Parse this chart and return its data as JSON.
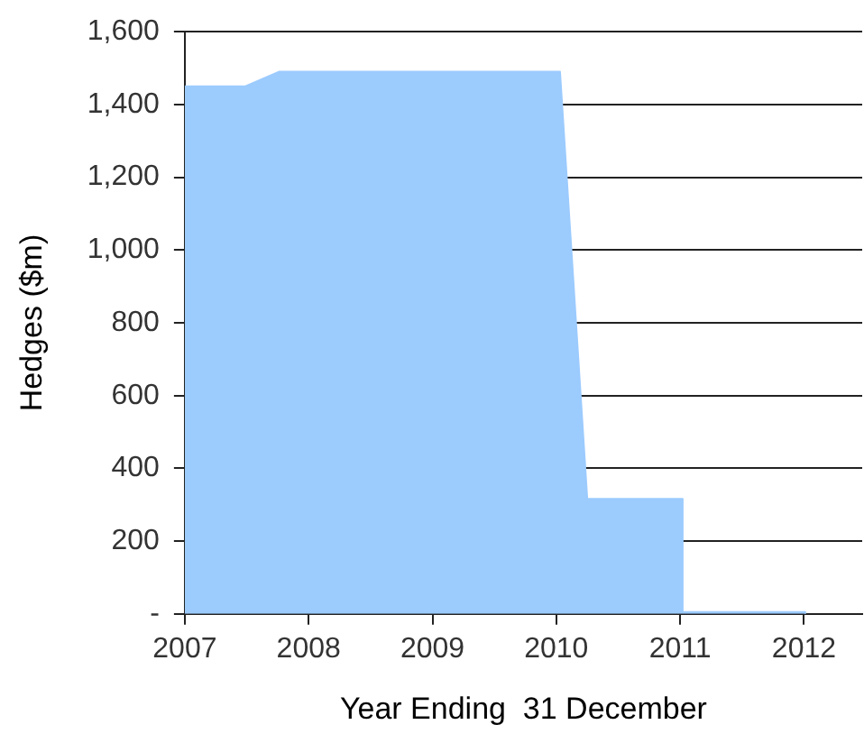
{
  "chart_data": {
    "type": "area",
    "xlabel": "Year Ending  31 December",
    "ylabel": "Hedges ($m)",
    "series": [
      {
        "color": "#9ccbfe",
        "x": [
          2007,
          2007.49,
          2007.76,
          2010.03,
          2010.25,
          2011.02,
          2011.02,
          2012.01,
          2012.01
        ],
        "values": [
          1450,
          1450,
          1490,
          1490,
          316,
          316,
          5,
          5,
          0
        ]
      }
    ],
    "xlim": [
      2007,
      2012.47
    ],
    "xticks": [
      2007,
      2008,
      2009,
      2010,
      2011,
      2012
    ],
    "ylim": [
      0,
      1600
    ],
    "yticks": [
      {
        "value": 0,
        "label": "-"
      },
      200,
      400,
      600,
      800,
      {
        "value": 1000,
        "label": "1,000"
      },
      {
        "value": 1200,
        "label": "1,200"
      },
      {
        "value": 1400,
        "label": "1,400"
      },
      {
        "value": 1600,
        "label": "1,600"
      }
    ],
    "grid": "y",
    "legend": false,
    "marker": "none"
  }
}
